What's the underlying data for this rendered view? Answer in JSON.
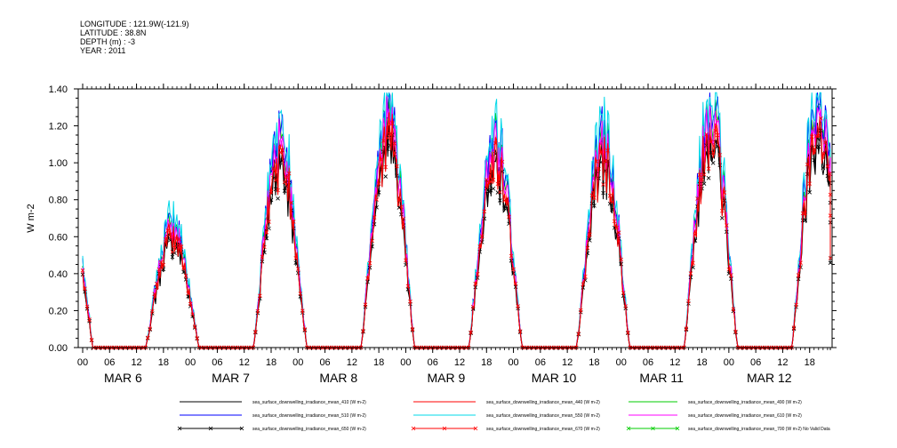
{
  "header": {
    "longitude": "LONGITUDE : 121.9W(-121.9)",
    "latitude": "LATITUDE : 38.8N",
    "depth": "DEPTH (m) : -3",
    "year": "YEAR : 2011"
  },
  "chart_data": {
    "type": "line",
    "ylabel": "W m-2",
    "ylim": [
      0.0,
      1.4
    ],
    "yticks": [
      "0.00",
      "0.20",
      "0.40",
      "0.60",
      "0.80",
      "1.00",
      "1.20",
      "1.40"
    ],
    "xlim_hours": [
      0,
      168
    ],
    "xtick_labels": [
      "00",
      "06",
      "12",
      "18",
      "00",
      "06",
      "12",
      "18",
      "00",
      "06",
      "12",
      "18",
      "00",
      "06",
      "12",
      "18",
      "00",
      "06",
      "12",
      "18",
      "00",
      "06",
      "12",
      "18",
      "00",
      "06",
      "12",
      "18"
    ],
    "day_labels": [
      "MAR  6",
      "MAR  7",
      "MAR  8",
      "MAR  9",
      "MAR 10",
      "MAR 11",
      "MAR 12"
    ],
    "grid": false,
    "legend_placement": "bottom",
    "day_peaks": [
      0.62,
      1.05,
      1.18,
      1.05,
      1.05,
      1.18,
      1.25
    ],
    "series": [
      {
        "name": "sea_surface_downwelling_irradiance_mean_410 (W m-2)",
        "color": "#000000",
        "scale": 0.93,
        "marker": false
      },
      {
        "name": "sea_surface_downwelling_irradiance_mean_440 (W m-2)",
        "color": "#ff0000",
        "scale": 0.97,
        "marker": false
      },
      {
        "name": "sea_surface_downwelling_irradiance_mean_490 (W m-2)",
        "color": "#00cc00",
        "scale": 1.05,
        "marker": false
      },
      {
        "name": "sea_surface_downwelling_irradiance_mean_510 (W m-2)",
        "color": "#0000ff",
        "scale": 1.08,
        "marker": false
      },
      {
        "name": "sea_surface_downwelling_irradiance_mean_550 (W m-2)",
        "color": "#00d8e8",
        "scale": 1.12,
        "marker": false
      },
      {
        "name": "sea_surface_downwelling_irradiance_mean_610 (W m-2)",
        "color": "#ff00ff",
        "scale": 1.02,
        "marker": false
      },
      {
        "name": "sea_surface_downwelling_irradiance_mean_650 (W m-2)",
        "color": "#000000",
        "scale": 0.9,
        "marker": true
      },
      {
        "name": "sea_surface_downwelling_irradiance_mean_670 (W m-2)",
        "color": "#ff0000",
        "scale": 0.95,
        "marker": true
      },
      {
        "name": "sea_surface_downwelling_irradiance_mean_700 (W m-2) No Valid Data",
        "color": "#00cc00",
        "scale": 0,
        "marker": true
      }
    ]
  }
}
